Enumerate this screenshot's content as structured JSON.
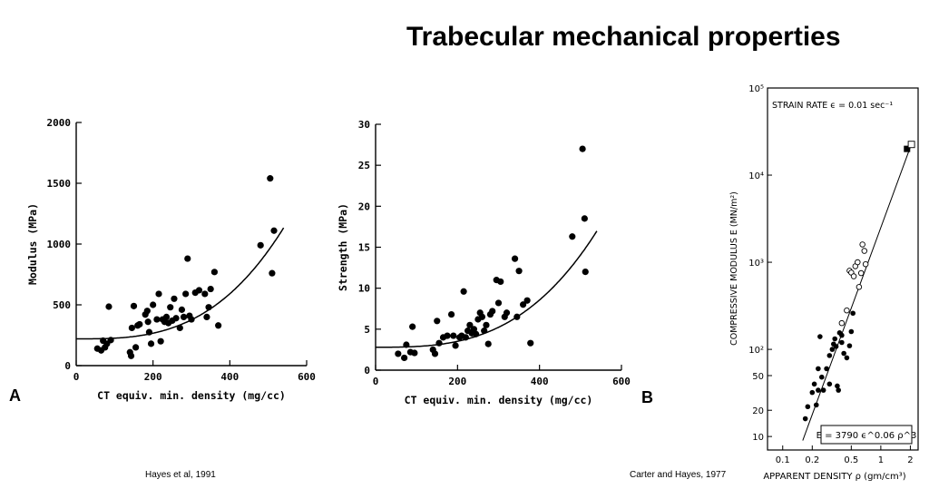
{
  "slide": {
    "title": "Trabecular mechanical properties",
    "panel_a_letter": "A",
    "panel_b_letter": "B",
    "citation_left": "Hayes et al, 1991",
    "citation_right": "Carter and Hayes, 1977"
  },
  "chart_data": [
    {
      "type": "scatter",
      "xlabel": "CT equiv. min. density (mg/cc)",
      "ylabel": "Modulus (MPa)",
      "xlim": [
        0,
        600
      ],
      "ylim": [
        0,
        2000
      ],
      "xticks": [
        0,
        200,
        400,
        600
      ],
      "yticks": [
        0,
        500,
        1000,
        1500,
        2000
      ],
      "grid": false,
      "fit_curve": {
        "form": "y = a + b*x^3",
        "a": 220,
        "b": 5.8e-06
      },
      "points": [
        [
          55,
          140
        ],
        [
          65,
          125
        ],
        [
          70,
          205
        ],
        [
          75,
          150
        ],
        [
          80,
          180
        ],
        [
          85,
          485
        ],
        [
          90,
          210
        ],
        [
          140,
          110
        ],
        [
          143,
          80
        ],
        [
          145,
          310
        ],
        [
          150,
          490
        ],
        [
          155,
          150
        ],
        [
          160,
          330
        ],
        [
          165,
          340
        ],
        [
          180,
          420
        ],
        [
          185,
          450
        ],
        [
          187,
          360
        ],
        [
          190,
          275
        ],
        [
          195,
          180
        ],
        [
          200,
          500
        ],
        [
          210,
          380
        ],
        [
          215,
          590
        ],
        [
          220,
          200
        ],
        [
          225,
          380
        ],
        [
          230,
          360
        ],
        [
          235,
          400
        ],
        [
          240,
          350
        ],
        [
          245,
          480
        ],
        [
          250,
          370
        ],
        [
          255,
          550
        ],
        [
          260,
          390
        ],
        [
          270,
          310
        ],
        [
          275,
          460
        ],
        [
          280,
          400
        ],
        [
          285,
          590
        ],
        [
          290,
          880
        ],
        [
          295,
          410
        ],
        [
          300,
          380
        ],
        [
          310,
          600
        ],
        [
          320,
          620
        ],
        [
          335,
          590
        ],
        [
          340,
          400
        ],
        [
          345,
          480
        ],
        [
          350,
          630
        ],
        [
          360,
          770
        ],
        [
          370,
          330
        ],
        [
          480,
          990
        ],
        [
          505,
          1540
        ],
        [
          510,
          760
        ],
        [
          515,
          1110
        ]
      ]
    },
    {
      "type": "scatter",
      "xlabel": "CT equiv. min. density (mg/cc)",
      "ylabel": "Strength (MPa)",
      "xlim": [
        0,
        600
      ],
      "ylim": [
        0,
        30
      ],
      "xticks": [
        0,
        200,
        400,
        600
      ],
      "yticks": [
        0,
        5,
        10,
        15,
        20,
        25,
        30
      ],
      "grid": false,
      "fit_curve": {
        "form": "y = a + b*x^3",
        "a": 2.8,
        "b": 9e-08
      },
      "points": [
        [
          55,
          2.0
        ],
        [
          70,
          1.5
        ],
        [
          75,
          3.1
        ],
        [
          85,
          2.2
        ],
        [
          90,
          5.3
        ],
        [
          95,
          2.1
        ],
        [
          140,
          2.5
        ],
        [
          145,
          2.0
        ],
        [
          150,
          6.0
        ],
        [
          155,
          3.3
        ],
        [
          165,
          4.0
        ],
        [
          175,
          4.2
        ],
        [
          185,
          6.8
        ],
        [
          190,
          4.2
        ],
        [
          195,
          3.0
        ],
        [
          205,
          4.0
        ],
        [
          210,
          4.2
        ],
        [
          215,
          9.6
        ],
        [
          220,
          4.0
        ],
        [
          225,
          4.8
        ],
        [
          230,
          5.5
        ],
        [
          235,
          4.5
        ],
        [
          240,
          5.0
        ],
        [
          245,
          4.4
        ],
        [
          250,
          6.2
        ],
        [
          255,
          7.0
        ],
        [
          260,
          6.5
        ],
        [
          265,
          4.8
        ],
        [
          270,
          5.5
        ],
        [
          275,
          3.2
        ],
        [
          280,
          6.8
        ],
        [
          285,
          7.2
        ],
        [
          295,
          11.0
        ],
        [
          300,
          8.2
        ],
        [
          305,
          10.8
        ],
        [
          315,
          6.5
        ],
        [
          320,
          7.0
        ],
        [
          340,
          13.6
        ],
        [
          345,
          6.5
        ],
        [
          350,
          12.1
        ],
        [
          360,
          8.0
        ],
        [
          370,
          8.5
        ],
        [
          378,
          3.3
        ],
        [
          480,
          16.3
        ],
        [
          505,
          27.0
        ],
        [
          510,
          18.5
        ],
        [
          512,
          12.0
        ]
      ]
    },
    {
      "type": "scatter",
      "xscale": "log",
      "yscale": "log",
      "xlabel": "APPARENT DENSITY ρ (gm/cm³)",
      "ylabel": "COMPRESSIVE MODULUS E (MN/m²)",
      "annotation": "STRAIN RATE ϵ = 0.01 sec⁻¹",
      "equation": "E = 3790 ϵ^0.06 ρ^3",
      "xlim": [
        0.07,
        2.4
      ],
      "ylim": [
        7,
        100000
      ],
      "xtick_labels": [
        "0.1",
        "0.2",
        "0.5",
        "1",
        "2"
      ],
      "xtick_values": [
        0.1,
        0.2,
        0.5,
        1,
        2
      ],
      "ytick_labels": [
        "10",
        "20",
        "50",
        "10²",
        "10³",
        "10⁴",
        "10⁵"
      ],
      "ytick_values": [
        10,
        20,
        50,
        100,
        1000,
        10000,
        100000
      ],
      "grid": false,
      "fit_line": {
        "from": [
          0.16,
          9
        ],
        "to": [
          2.0,
          21000
        ]
      },
      "series": [
        {
          "name": "",
          "marker": "filled-circle",
          "points": [
            [
              0.17,
              16
            ],
            [
              0.18,
              22
            ],
            [
              0.2,
              32
            ],
            [
              0.22,
              23
            ],
            [
              0.23,
              34
            ],
            [
              0.21,
              40
            ],
            [
              0.23,
              60
            ],
            [
              0.25,
              48
            ],
            [
              0.26,
              34
            ],
            [
              0.24,
              140
            ],
            [
              0.3,
              85
            ],
            [
              0.32,
              100
            ],
            [
              0.33,
              115
            ],
            [
              0.34,
              132
            ],
            [
              0.35,
              108
            ],
            [
              0.36,
              38
            ],
            [
              0.37,
              34
            ],
            [
              0.38,
              155
            ],
            [
              0.4,
              120
            ],
            [
              0.42,
              90
            ],
            [
              0.45,
              80
            ],
            [
              0.48,
              110
            ],
            [
              0.5,
              160
            ],
            [
              0.52,
              260
            ],
            [
              0.28,
              60
            ],
            [
              0.3,
              40
            ],
            [
              0.4,
              145
            ]
          ]
        },
        {
          "name": "",
          "marker": "open-circle",
          "points": [
            [
              0.4,
              200
            ],
            [
              0.45,
              280
            ],
            [
              0.48,
              800
            ],
            [
              0.5,
              760
            ],
            [
              0.53,
              690
            ],
            [
              0.55,
              900
            ],
            [
              0.58,
              1000
            ],
            [
              0.6,
              520
            ],
            [
              0.63,
              750
            ],
            [
              0.65,
              1600
            ],
            [
              0.68,
              1350
            ],
            [
              0.7,
              950
            ]
          ]
        },
        {
          "name": "",
          "marker": "filled-square",
          "points": [
            [
              1.85,
              20000
            ]
          ]
        },
        {
          "name": "",
          "marker": "open-square",
          "points": [
            [
              2.05,
              22500
            ]
          ]
        }
      ]
    }
  ]
}
